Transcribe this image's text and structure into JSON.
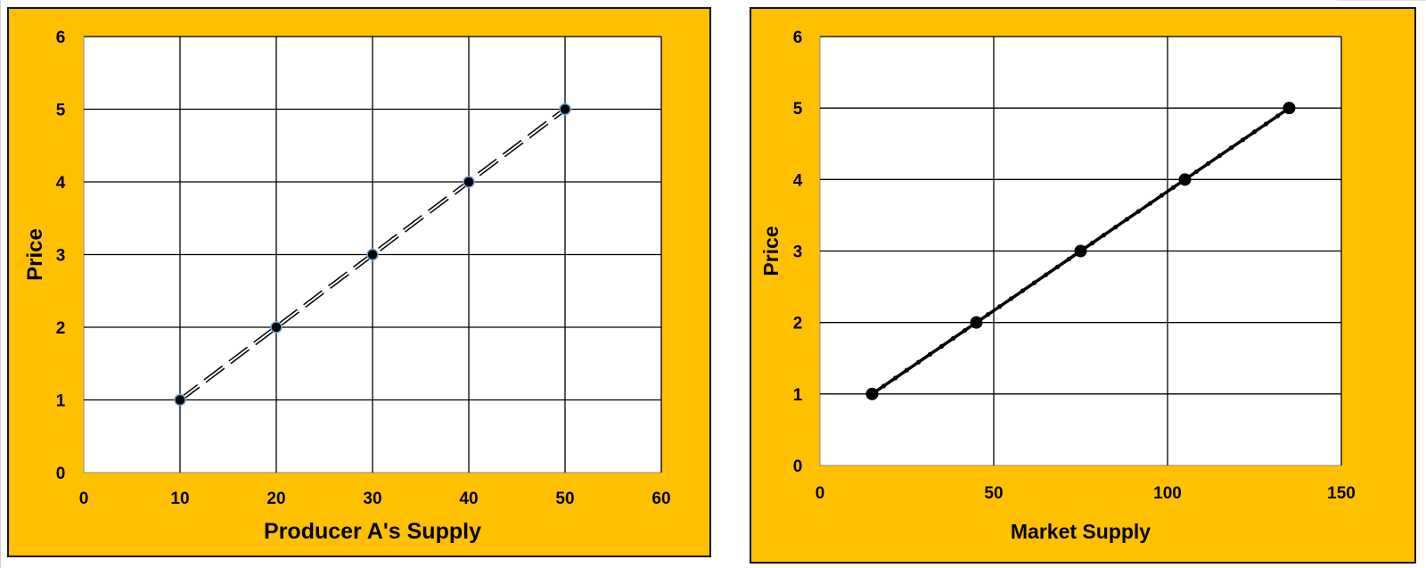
{
  "chart_data": [
    {
      "type": "line",
      "xlabel": "Producer A's Supply",
      "ylabel": "Price",
      "xlim": [
        0,
        60
      ],
      "ylim": [
        0,
        6
      ],
      "xticks": [
        0,
        10,
        20,
        30,
        40,
        50,
        60
      ],
      "yticks": [
        0,
        1,
        2,
        3,
        4,
        5,
        6
      ],
      "grid": true,
      "line_style": "dashed",
      "background": "#FFC000",
      "plot_background": "#FFFFFF",
      "series": [
        {
          "x": [
            10,
            20,
            30,
            40,
            50
          ],
          "y": [
            1,
            2,
            3,
            4,
            5
          ],
          "color": "#000000"
        }
      ]
    },
    {
      "type": "line",
      "xlabel": "Market Supply",
      "ylabel": "Price",
      "xlim": [
        0,
        150
      ],
      "ylim": [
        0,
        6
      ],
      "xticks": [
        0,
        50,
        100,
        150
      ],
      "yticks": [
        0,
        1,
        2,
        3,
        4,
        5,
        6
      ],
      "grid": true,
      "line_style": "solid",
      "background": "#FFC000",
      "plot_background": "#FFFFFF",
      "series": [
        {
          "x": [
            15,
            45,
            75,
            105,
            135
          ],
          "y": [
            1,
            2,
            3,
            4,
            5
          ],
          "color": "#000000"
        }
      ]
    }
  ]
}
